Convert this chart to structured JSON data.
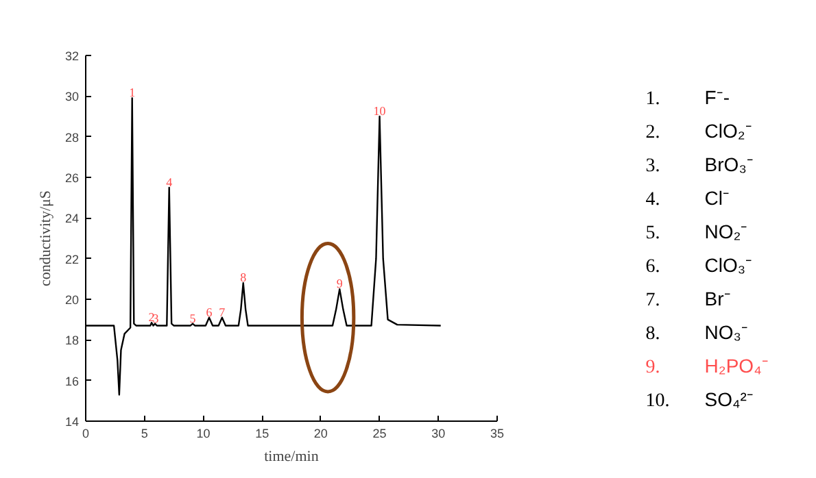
{
  "chart_data": {
    "type": "line",
    "xlabel": "time/min",
    "ylabel": "conductivity/μS",
    "x": [
      0,
      2.4,
      2.7,
      2.85,
      3.0,
      3.3,
      3.8,
      3.95,
      4.1,
      4.3,
      5.5,
      5.6,
      5.75,
      5.9,
      6.05,
      6.9,
      7.1,
      7.3,
      7.5,
      8.9,
      9.1,
      9.3,
      10.2,
      10.5,
      10.8,
      11.3,
      11.6,
      11.9,
      13.0,
      13.2,
      13.4,
      13.6,
      13.8,
      21.0,
      21.3,
      21.6,
      21.9,
      22.2,
      24.3,
      24.7,
      25.0,
      25.3,
      25.7,
      26.5,
      30.2
    ],
    "series": [
      {
        "color": "#000000",
        "values": [
          18.7,
          18.7,
          17,
          15.3,
          17.5,
          18.3,
          18.6,
          29.9,
          18.8,
          18.7,
          18.7,
          18.85,
          18.7,
          18.8,
          18.7,
          18.7,
          25.5,
          18.8,
          18.7,
          18.7,
          18.8,
          18.7,
          18.7,
          19.1,
          18.7,
          18.7,
          19.1,
          18.7,
          18.7,
          19.5,
          20.8,
          19.5,
          18.7,
          18.7,
          19.5,
          20.5,
          19.5,
          18.7,
          18.7,
          22,
          29.0,
          22,
          19.0,
          18.75,
          18.7
        ]
      }
    ],
    "xlim": [
      0,
      35
    ],
    "xticks": [
      0,
      5,
      10,
      15,
      20,
      25,
      30,
      35
    ],
    "ylim": [
      14,
      32
    ],
    "yticks": [
      14,
      16,
      18,
      20,
      22,
      24,
      26,
      28,
      30,
      32
    ],
    "grid": false,
    "marker": "none",
    "line_style": "solid",
    "annotations": [
      {
        "text": "1",
        "x": 3.95,
        "y": 29.9
      },
      {
        "text": "2",
        "x": 5.6,
        "y": 18.85
      },
      {
        "text": "3",
        "x": 5.95,
        "y": 18.8
      },
      {
        "text": "4",
        "x": 7.1,
        "y": 25.5
      },
      {
        "text": "5",
        "x": 9.1,
        "y": 18.8
      },
      {
        "text": "6",
        "x": 10.5,
        "y": 19.1
      },
      {
        "text": "7",
        "x": 11.6,
        "y": 19.1
      },
      {
        "text": "8",
        "x": 13.4,
        "y": 20.8
      },
      {
        "text": "9",
        "x": 21.6,
        "y": 20.5
      },
      {
        "text": "10",
        "x": 25.0,
        "y": 29.0
      },
      "1.\tF⁻-",
      "2.\tClO₂⁻",
      "3.\tBrO₃⁻",
      "4.\tCl⁻",
      "5.\tNO₂⁻",
      "6.\tClO₃⁻",
      "7.\tBr⁻",
      "8.\tNO₃⁻",
      "9.\tH₂PO₄⁻",
      "10.\tSO₄²⁻"
    ]
  }
}
